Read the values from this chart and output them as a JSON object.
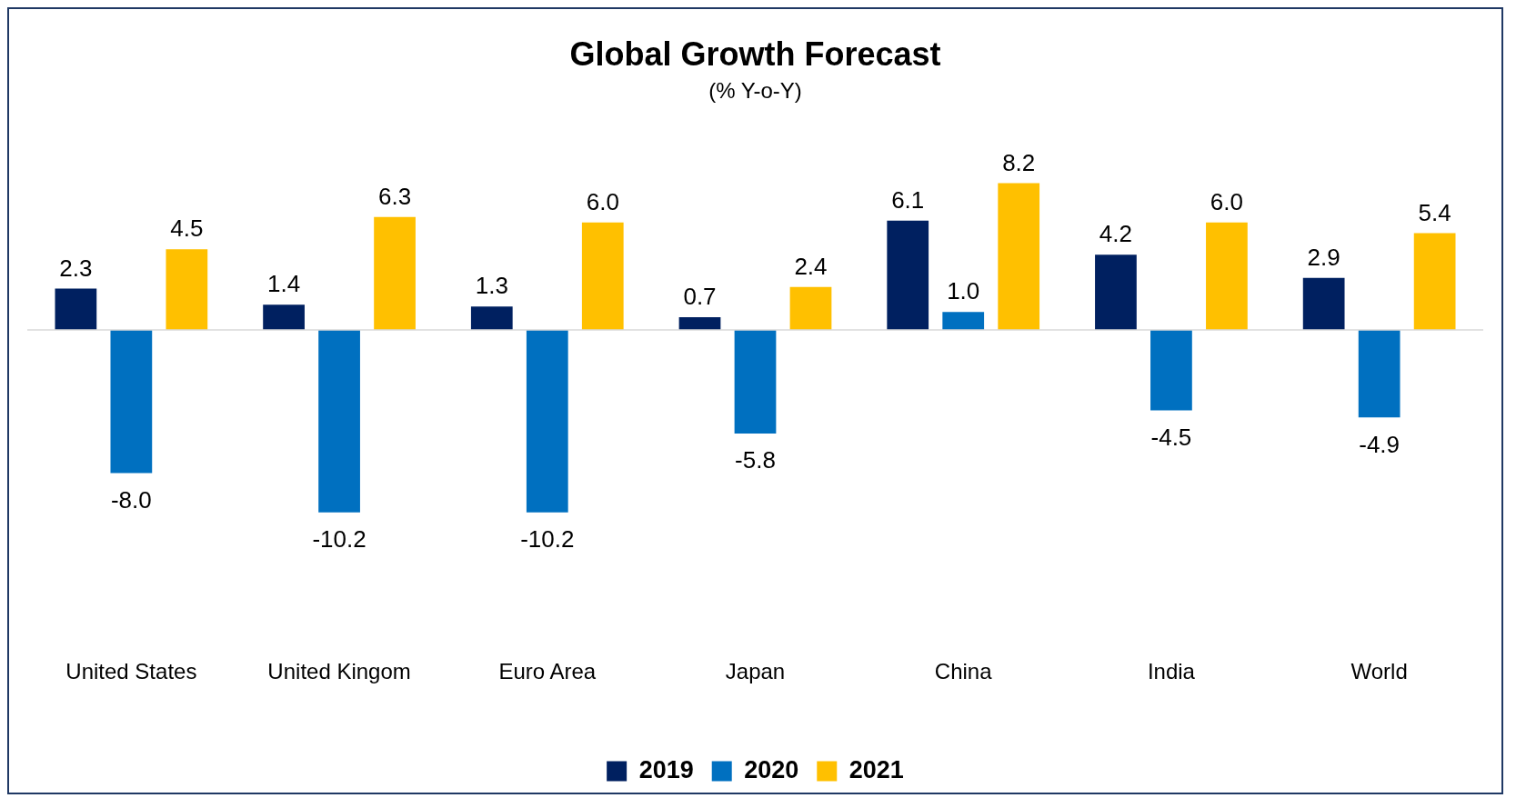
{
  "chart_data": {
    "type": "bar",
    "title": "Global Growth Forecast",
    "subtitle": "(% Y-o-Y)",
    "categories": [
      "United States",
      "United Kingom",
      "Euro Area",
      "Japan",
      "China",
      "India",
      "World"
    ],
    "series": [
      {
        "name": "2019",
        "color": "#002060",
        "values": [
          2.3,
          1.4,
          1.3,
          0.7,
          6.1,
          4.2,
          2.9
        ],
        "value_labels": [
          "2.3",
          "1.4",
          "1.3",
          "0.7",
          "6.1",
          "4.2",
          "2.9"
        ]
      },
      {
        "name": "2020",
        "color": "#0070c0",
        "values": [
          -8,
          -10.2,
          -10.2,
          -5.8,
          1,
          -4.5,
          -4.9
        ],
        "value_labels": [
          "-8.0",
          "-10.2",
          "-10.2",
          "-5.8",
          "1.0",
          "-4.5",
          "-4.9"
        ]
      },
      {
        "name": "2021",
        "color": "#ffc000",
        "values": [
          4.5,
          6.3,
          6,
          2.4,
          8.2,
          6,
          5.4
        ],
        "value_labels": [
          "4.5",
          "6.3",
          "6.0",
          "2.4",
          "8.2",
          "6.0",
          "5.4"
        ]
      }
    ],
    "legend": "bottom",
    "grid": false,
    "tick_labels": "x"
  }
}
